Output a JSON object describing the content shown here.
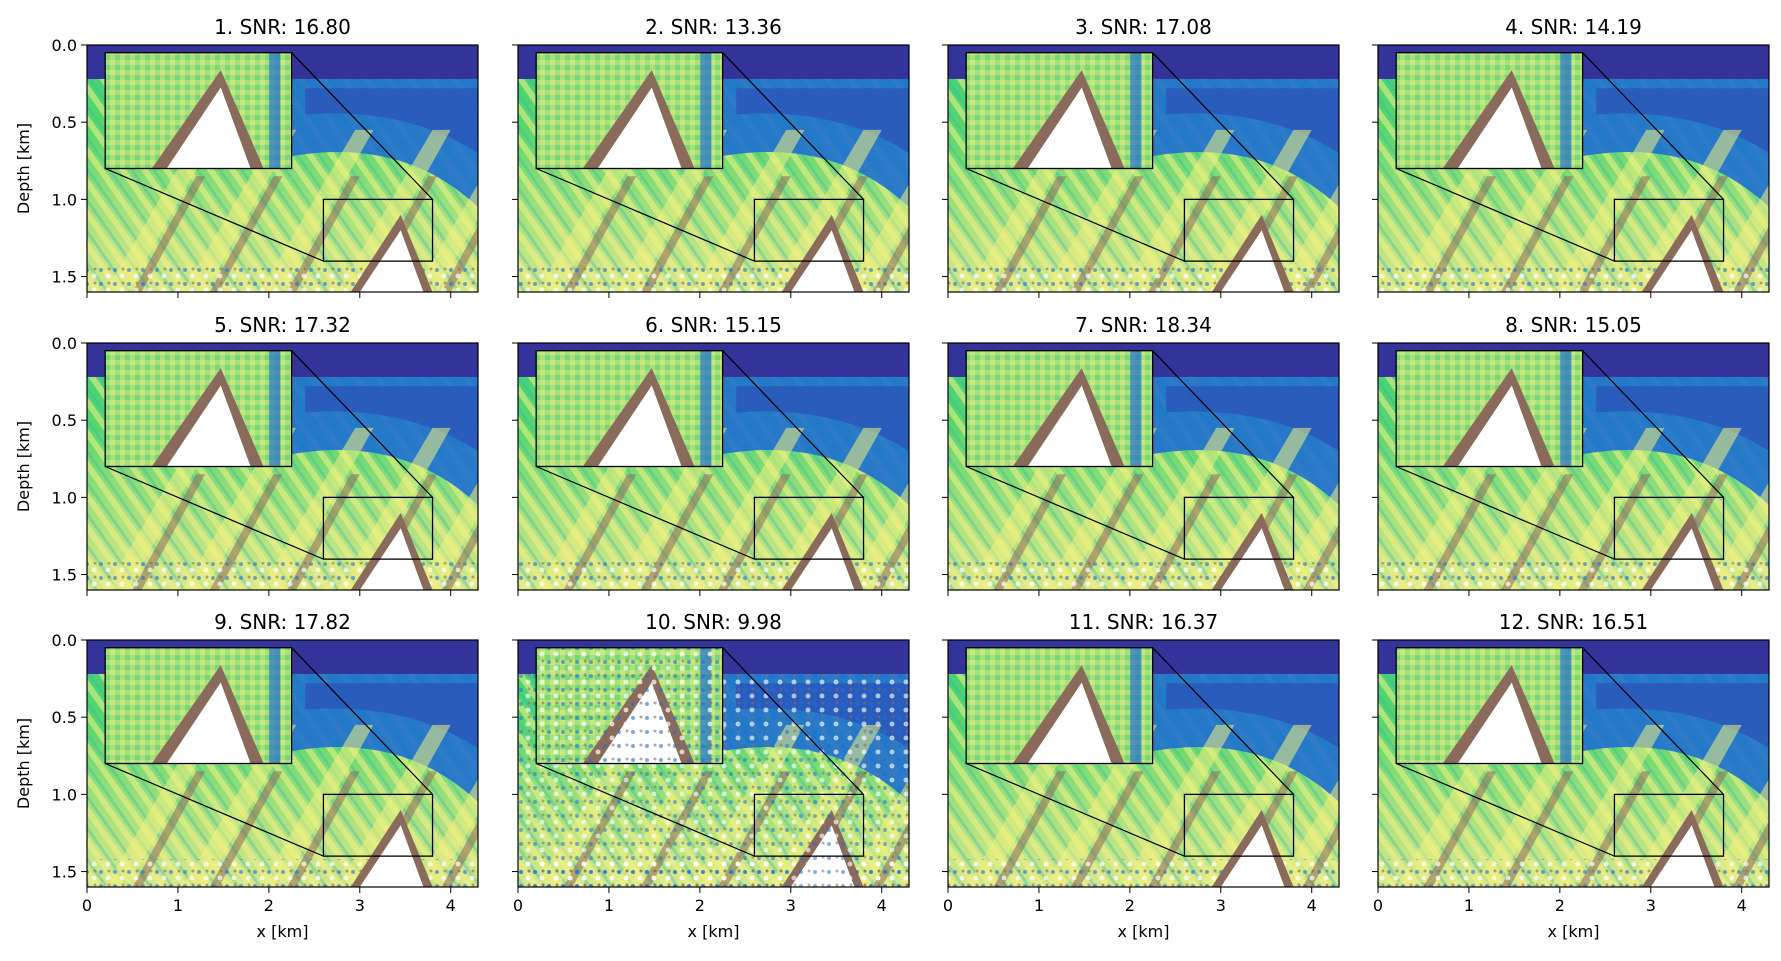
{
  "chart_data": {
    "type": "heatmap",
    "layout": {
      "rows": 3,
      "cols": 4
    },
    "xlabel": "x [km]",
    "ylabel": "Depth [km]",
    "xlim": [
      0,
      4.3
    ],
    "ylim": [
      1.6,
      0.0
    ],
    "xticks": [
      "0",
      "1",
      "2",
      "3",
      "4"
    ],
    "xtick_values": [
      0,
      1,
      2,
      3,
      4
    ],
    "yticks": [
      "0.0",
      "0.5",
      "1.0",
      "1.5"
    ],
    "ytick_values": [
      0.0,
      0.5,
      1.0,
      1.5
    ],
    "zoom_region": {
      "x": [
        2.6,
        3.8
      ],
      "depth": [
        1.0,
        1.4
      ]
    },
    "colormap": [
      "#333399",
      "#1f6fd0",
      "#2fb8b0",
      "#4ad26a",
      "#a8e07a",
      "#f0f080",
      "#a08060",
      "#8a6a5a",
      "#ffffff"
    ],
    "panels": [
      {
        "title": "1. SNR: 16.80",
        "snr": 16.8
      },
      {
        "title": "2. SNR: 13.36",
        "snr": 13.36
      },
      {
        "title": "3. SNR: 17.08",
        "snr": 17.08
      },
      {
        "title": "4. SNR: 14.19",
        "snr": 14.19
      },
      {
        "title": "5. SNR: 17.32",
        "snr": 17.32
      },
      {
        "title": "6. SNR: 15.15",
        "snr": 15.15
      },
      {
        "title": "7. SNR: 18.34",
        "snr": 18.34
      },
      {
        "title": "8. SNR: 15.05",
        "snr": 15.05
      },
      {
        "title": "9. SNR: 17.82",
        "snr": 17.82
      },
      {
        "title": "10. SNR: 9.98",
        "snr": 9.98
      },
      {
        "title": "11. SNR: 16.37",
        "snr": 16.37
      },
      {
        "title": "12. SNR: 16.51",
        "snr": 16.51
      }
    ]
  }
}
